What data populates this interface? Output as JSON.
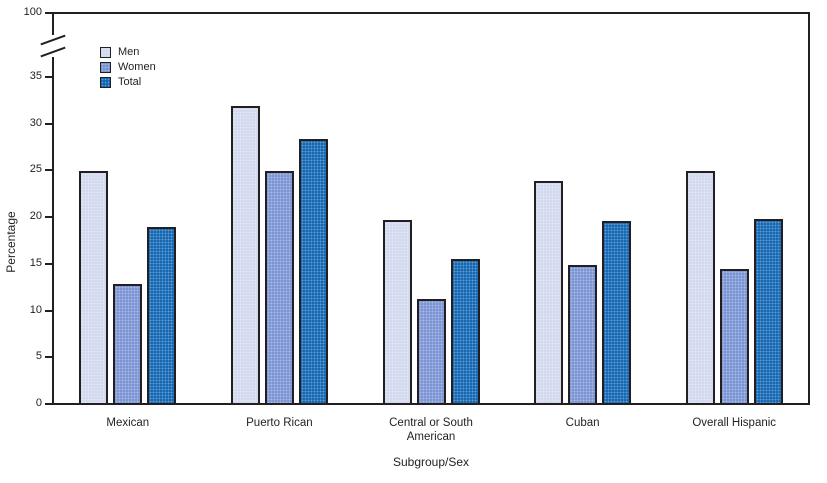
{
  "chart_data": {
    "type": "bar",
    "title": "",
    "categories": [
      "Mexican",
      "Puerto Rican",
      "Central or South American",
      "Cuban",
      "Overall Hispanic"
    ],
    "series": [
      {
        "name": "Men",
        "color": "#d1d8ef",
        "values": [
          25.0,
          32.0,
          19.8,
          24.0,
          25.0
        ]
      },
      {
        "name": "Women",
        "color": "#7791d3",
        "values": [
          12.9,
          25.0,
          11.4,
          15.0,
          14.6
        ]
      },
      {
        "name": "Total",
        "color": "#0c63b2",
        "values": [
          19.0,
          28.5,
          15.6,
          19.7,
          19.9
        ]
      }
    ],
    "xlabel": "Subgroup/Sex",
    "ylabel": "Percentage",
    "y_ticks": [
      0,
      5,
      10,
      15,
      20,
      25,
      30,
      35
    ],
    "y_axis_break_top_label": "100",
    "ylim_linear": [
      0,
      35
    ],
    "axis_break": true,
    "legend_position": "top-left-inside",
    "grid": false,
    "axis_color": "#231f20"
  }
}
